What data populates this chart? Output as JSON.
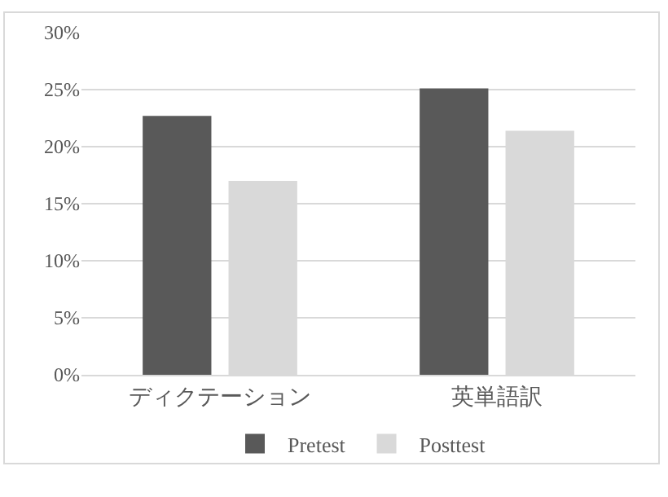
{
  "chart_data": {
    "type": "bar",
    "categories": [
      "ディクテーション",
      "英単語訳"
    ],
    "series": [
      {
        "name": "Pretest",
        "color": "#595959",
        "values": [
          22.7,
          25.1
        ]
      },
      {
        "name": "Posttest",
        "color": "#d9d9d9",
        "values": [
          17.0,
          21.4
        ]
      }
    ],
    "ylim": [
      0,
      30
    ],
    "yticks": [
      {
        "value": 0,
        "label": "0%"
      },
      {
        "value": 5,
        "label": "5%"
      },
      {
        "value": 10,
        "label": "10%"
      },
      {
        "value": 15,
        "label": "15%"
      },
      {
        "value": 20,
        "label": "20%"
      },
      {
        "value": 25,
        "label": "25%"
      },
      {
        "value": 30,
        "label": "30%"
      }
    ],
    "grid": "y",
    "legend": "bottom"
  }
}
